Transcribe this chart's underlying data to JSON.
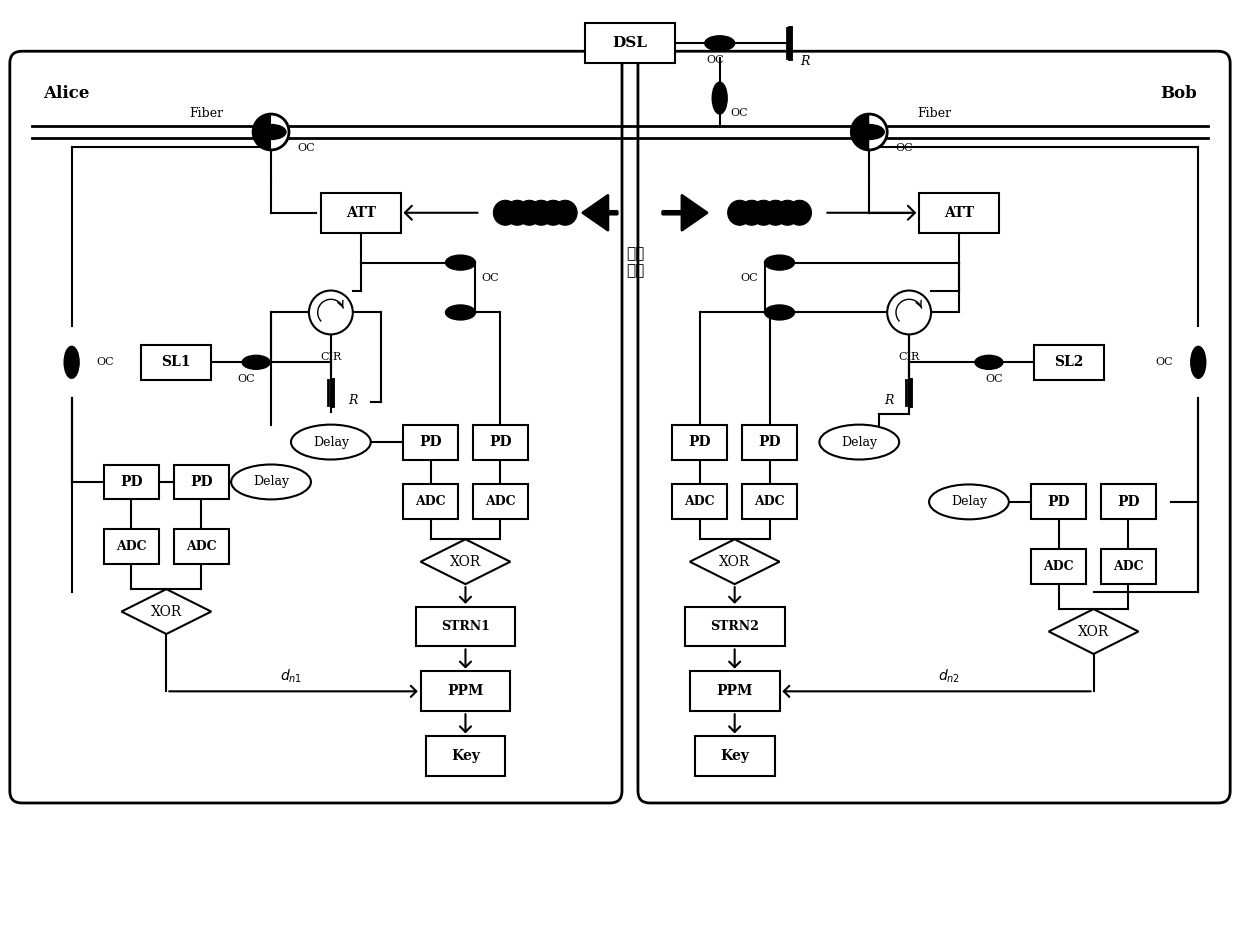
{
  "bg_color": "#ffffff",
  "alice_label": "Alice",
  "bob_label": "Bob",
  "public_channel_label": "公共\n信道",
  "fiber_label": "Fiber"
}
